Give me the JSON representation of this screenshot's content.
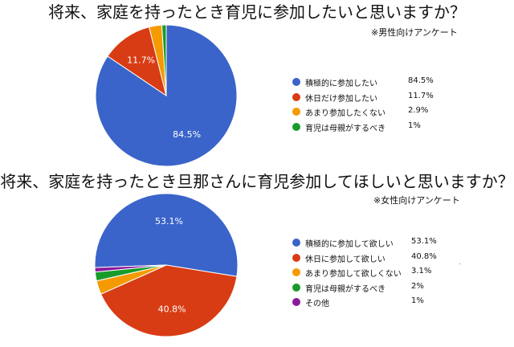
{
  "chart_data": [
    {
      "type": "pie",
      "title": "将来、家庭を持ったとき育児に参加したいと思いますか？",
      "subtitle": "※男性向けアンケート",
      "legend": "right",
      "slices": [
        {
          "label": "積極的に参加したい",
          "value": 84.5,
          "value_text": "84.5%",
          "color": "#3a64c9",
          "slice_label": "84.5%"
        },
        {
          "label": "休日だけ参加したい",
          "value": 11.7,
          "value_text": "11.7%",
          "color": "#d83c14",
          "slice_label": "11.7%"
        },
        {
          "label": "あまり参加したくない",
          "value": 2.9,
          "value_text": "2.9%",
          "color": "#f59a00",
          "slice_label": ""
        },
        {
          "label": "育児は母親がするべき",
          "value": 1,
          "value_text": "1%",
          "color": "#179b2a",
          "slice_label": ""
        }
      ]
    },
    {
      "type": "pie",
      "title": "将来、家庭を持ったとき旦那さんに育児参加してほしいと思いますか？",
      "subtitle": "※女性向けアンケート",
      "legend": "right",
      "slices": [
        {
          "label": "積極的に参加して欲しい",
          "value": 53.1,
          "value_text": "53.1%",
          "color": "#3a64c9",
          "slice_label": "53.1%"
        },
        {
          "label": "休日に参加して欲しい",
          "value": 40.8,
          "value_text": "40.8%",
          "color": "#d83c14",
          "slice_label": "40.8%"
        },
        {
          "label": "あまり参加して欲しくない",
          "value": 3.1,
          "value_text": "3.1%",
          "color": "#f59a00",
          "slice_label": ""
        },
        {
          "label": "育児は母親がするべき",
          "value": 2,
          "value_text": "2%",
          "color": "#179b2a",
          "slice_label": ""
        },
        {
          "label": "その他",
          "value": 1,
          "value_text": "1%",
          "color": "#8b1a9b",
          "slice_label": ""
        }
      ]
    }
  ],
  "misc": {
    "dot": "."
  }
}
